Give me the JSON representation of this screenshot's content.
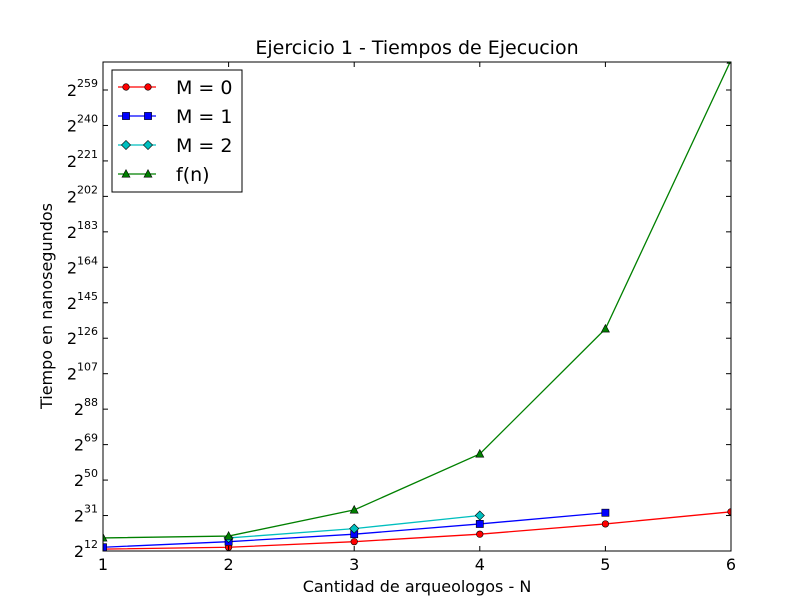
{
  "chart_data": {
    "type": "line",
    "title": "Ejercicio 1 - Tiempos de Ejecucion",
    "xlabel": "Cantidad de arqueologos - N",
    "ylabel": "Tiempo en nanosegundos",
    "y_scale": "log2",
    "xlim": [
      1,
      6
    ],
    "ylim_log2": [
      12,
      274
    ],
    "x_ticks": [
      1,
      2,
      3,
      4,
      5,
      6
    ],
    "x_tick_labels": [
      "1",
      "2",
      "3",
      "4",
      "5",
      "6"
    ],
    "y_ticks_log2": [
      12,
      31,
      50,
      69,
      88,
      107,
      126,
      145,
      164,
      183,
      202,
      221,
      240,
      259
    ],
    "y_tick_labels": [
      {
        "base": "2",
        "exp": "12"
      },
      {
        "base": "2",
        "exp": "31"
      },
      {
        "base": "2",
        "exp": "50"
      },
      {
        "base": "2",
        "exp": "69"
      },
      {
        "base": "2",
        "exp": "88"
      },
      {
        "base": "2",
        "exp": "107"
      },
      {
        "base": "2",
        "exp": "126"
      },
      {
        "base": "2",
        "exp": "145"
      },
      {
        "base": "2",
        "exp": "164"
      },
      {
        "base": "2",
        "exp": "183"
      },
      {
        "base": "2",
        "exp": "202"
      },
      {
        "base": "2",
        "exp": "221"
      },
      {
        "base": "2",
        "exp": "240"
      },
      {
        "base": "2",
        "exp": "259"
      }
    ],
    "legend_position": "top-left",
    "series": [
      {
        "name": "M = 0",
        "color": "#ff0000",
        "marker": "circle",
        "x": [
          1,
          2,
          3,
          4,
          5,
          6
        ],
        "y_log2": [
          13,
          14,
          17,
          21,
          26.5,
          33
        ]
      },
      {
        "name": "M = 1",
        "color": "#0000ff",
        "marker": "square",
        "x": [
          1,
          2,
          3,
          4,
          5
        ],
        "y_log2": [
          14,
          17,
          21,
          26.5,
          32.5
        ]
      },
      {
        "name": "M = 2",
        "color": "#00bfbf",
        "marker": "diamond",
        "x": [
          2,
          3,
          4
        ],
        "y_log2": [
          19,
          24,
          31
        ]
      },
      {
        "name": "f(n)",
        "color": "#008000",
        "marker": "triangle",
        "x": [
          1,
          2,
          3,
          4,
          5,
          6
        ],
        "y_log2": [
          19,
          20,
          34,
          64,
          131,
          275
        ]
      }
    ]
  }
}
